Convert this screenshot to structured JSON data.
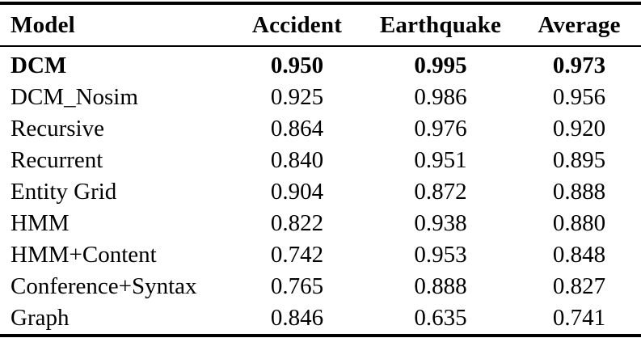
{
  "table": {
    "columns": [
      "Model",
      "Accident",
      "Earthquake",
      "Average"
    ],
    "rows": [
      {
        "model": "DCM",
        "accident": "0.950",
        "earthquake": "0.995",
        "average": "0.973"
      },
      {
        "model": "DCM_Nosim",
        "accident": "0.925",
        "earthquake": "0.986",
        "average": "0.956"
      },
      {
        "model": "Recursive",
        "accident": "0.864",
        "earthquake": "0.976",
        "average": "0.920"
      },
      {
        "model": "Recurrent",
        "accident": "0.840",
        "earthquake": "0.951",
        "average": "0.895"
      },
      {
        "model": "Entity Grid",
        "accident": "0.904",
        "earthquake": "0.872",
        "average": "0.888"
      },
      {
        "model": "HMM",
        "accident": "0.822",
        "earthquake": "0.938",
        "average": "0.880"
      },
      {
        "model": "HMM+Content",
        "accident": "0.742",
        "earthquake": "0.953",
        "average": "0.848"
      },
      {
        "model": "Conference+Syntax",
        "accident": "0.765",
        "earthquake": "0.888",
        "average": "0.827"
      },
      {
        "model": "Graph",
        "accident": "0.846",
        "earthquake": "0.635",
        "average": "0.741"
      }
    ],
    "highlighted_model": "DCM"
  },
  "colors": {
    "text": "#000000",
    "background": "#ffffff",
    "rule": "#000000"
  }
}
